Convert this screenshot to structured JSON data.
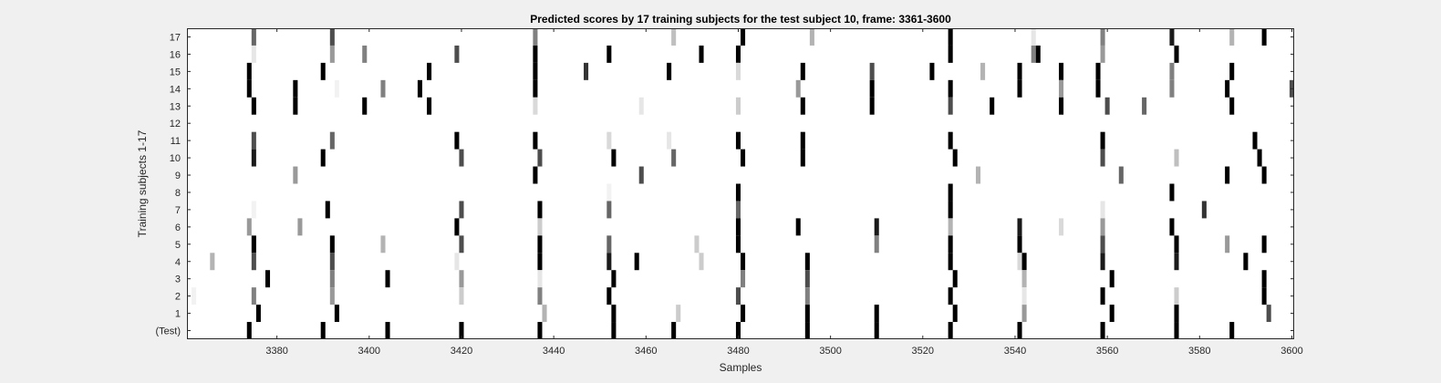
{
  "chart_data": {
    "type": "heatmap",
    "title": "Predicted scores by 17 training subjects for the test subject 10, frame: 3361-3600",
    "xlabel": "Samples",
    "ylabel": "Training subjects 1-17",
    "xlim": [
      3361,
      3600
    ],
    "x_ticks": [
      3380,
      3400,
      3420,
      3440,
      3460,
      3480,
      3500,
      3520,
      3540,
      3560,
      3580,
      3600
    ],
    "y_rows": [
      "17",
      "16",
      "15",
      "14",
      "13",
      "12",
      "11",
      "10",
      "9",
      "8",
      "7",
      "6",
      "5",
      "4",
      "3",
      "2",
      "1",
      "(Test)"
    ],
    "colormap": "gray (0 = black, 1 = white)",
    "cells": {
      "17": [
        [
          3375,
          0.4
        ],
        [
          3392,
          0.3
        ],
        [
          3436,
          0.5
        ],
        [
          3466,
          0.75
        ],
        [
          3481,
          0.0
        ],
        [
          3496,
          0.7
        ],
        [
          3526,
          0.0
        ],
        [
          3544,
          0.9
        ],
        [
          3559,
          0.5
        ],
        [
          3574,
          0.1
        ],
        [
          3587,
          0.7
        ],
        [
          3594,
          0.0
        ]
      ],
      "16": [
        [
          3375,
          0.9
        ],
        [
          3392,
          0.6
        ],
        [
          3399,
          0.5
        ],
        [
          3419,
          0.3
        ],
        [
          3436,
          0.0
        ],
        [
          3452,
          0.0
        ],
        [
          3472,
          0.0
        ],
        [
          3480,
          0.0
        ],
        [
          3526,
          0.0
        ],
        [
          3544,
          0.5
        ],
        [
          3545,
          0.0
        ],
        [
          3559,
          0.6
        ],
        [
          3575,
          0.0
        ]
      ],
      "15": [
        [
          3374,
          0.0
        ],
        [
          3390,
          0.0
        ],
        [
          3413,
          0.0
        ],
        [
          3436,
          0.0
        ],
        [
          3447,
          0.2
        ],
        [
          3465,
          0.0
        ],
        [
          3480,
          0.85
        ],
        [
          3494,
          0.0
        ],
        [
          3509,
          0.3
        ],
        [
          3522,
          0.0
        ],
        [
          3533,
          0.7
        ],
        [
          3541,
          0.0
        ],
        [
          3550,
          0.0
        ],
        [
          3558,
          0.0
        ],
        [
          3574,
          0.5
        ],
        [
          3587,
          0.0
        ]
      ],
      "14": [
        [
          3374,
          0.0
        ],
        [
          3384,
          0.0
        ],
        [
          3393,
          0.95
        ],
        [
          3403,
          0.5
        ],
        [
          3411,
          0.0
        ],
        [
          3436,
          0.0
        ],
        [
          3493,
          0.6
        ],
        [
          3509,
          0.0
        ],
        [
          3526,
          0.0
        ],
        [
          3541,
          0.0
        ],
        [
          3550,
          0.6
        ],
        [
          3558,
          0.0
        ],
        [
          3574,
          0.5
        ],
        [
          3586,
          0.0
        ],
        [
          3600,
          0.3
        ]
      ],
      "13": [
        [
          3375,
          0.0
        ],
        [
          3384,
          0.0
        ],
        [
          3399,
          0.0
        ],
        [
          3413,
          0.0
        ],
        [
          3436,
          0.85
        ],
        [
          3459,
          0.9
        ],
        [
          3480,
          0.8
        ],
        [
          3494,
          0.0
        ],
        [
          3509,
          0.0
        ],
        [
          3526,
          0.3
        ],
        [
          3535,
          0.0
        ],
        [
          3550,
          0.0
        ],
        [
          3560,
          0.3
        ],
        [
          3568,
          0.4
        ],
        [
          3587,
          0.0
        ]
      ],
      "12": [],
      "11": [
        [
          3375,
          0.3
        ],
        [
          3392,
          0.4
        ],
        [
          3419,
          0.0
        ],
        [
          3436,
          0.0
        ],
        [
          3452,
          0.85
        ],
        [
          3465,
          0.9
        ],
        [
          3480,
          0.0
        ],
        [
          3494,
          0.0
        ],
        [
          3526,
          0.0
        ],
        [
          3559,
          0.0
        ],
        [
          3592,
          0.0
        ]
      ],
      "10": [
        [
          3375,
          0.1
        ],
        [
          3390,
          0.0
        ],
        [
          3420,
          0.3
        ],
        [
          3437,
          0.3
        ],
        [
          3453,
          0.0
        ],
        [
          3466,
          0.4
        ],
        [
          3481,
          0.0
        ],
        [
          3494,
          0.0
        ],
        [
          3527,
          0.0
        ],
        [
          3559,
          0.3
        ],
        [
          3575,
          0.75
        ],
        [
          3593,
          0.0
        ]
      ],
      "9": [
        [
          3384,
          0.6
        ],
        [
          3436,
          0.0
        ],
        [
          3459,
          0.3
        ],
        [
          3532,
          0.7
        ],
        [
          3563,
          0.4
        ],
        [
          3586,
          0.0
        ],
        [
          3594,
          0.0
        ]
      ],
      "8": [
        [
          3452,
          0.95
        ],
        [
          3480,
          0.0
        ],
        [
          3526,
          0.0
        ],
        [
          3574,
          0.0
        ]
      ],
      "7": [
        [
          3375,
          0.95
        ],
        [
          3391,
          0.0
        ],
        [
          3420,
          0.3
        ],
        [
          3437,
          0.0
        ],
        [
          3452,
          0.4
        ],
        [
          3480,
          0.4
        ],
        [
          3526,
          0.0
        ],
        [
          3559,
          0.9
        ],
        [
          3581,
          0.2
        ]
      ],
      "6": [
        [
          3374,
          0.6
        ],
        [
          3385,
          0.6
        ],
        [
          3419,
          0.0
        ],
        [
          3437,
          0.8
        ],
        [
          3480,
          0.0
        ],
        [
          3493,
          0.0
        ],
        [
          3510,
          0.1
        ],
        [
          3526,
          0.7
        ],
        [
          3541,
          0.1
        ],
        [
          3550,
          0.85
        ],
        [
          3559,
          0.6
        ],
        [
          3574,
          0.0
        ]
      ],
      "5": [
        [
          3375,
          0.0
        ],
        [
          3392,
          0.0
        ],
        [
          3403,
          0.7
        ],
        [
          3420,
          0.3
        ],
        [
          3437,
          0.0
        ],
        [
          3452,
          0.4
        ],
        [
          3471,
          0.8
        ],
        [
          3480,
          0.0
        ],
        [
          3510,
          0.5
        ],
        [
          3526,
          0.0
        ],
        [
          3541,
          0.0
        ],
        [
          3559,
          0.3
        ],
        [
          3575,
          0.0
        ],
        [
          3586,
          0.6
        ],
        [
          3594,
          0.0
        ]
      ],
      "4": [
        [
          3366,
          0.7
        ],
        [
          3375,
          0.3
        ],
        [
          3392,
          0.3
        ],
        [
          3419,
          0.9
        ],
        [
          3437,
          0.0
        ],
        [
          3452,
          0.1
        ],
        [
          3458,
          0.0
        ],
        [
          3472,
          0.8
        ],
        [
          3481,
          0.0
        ],
        [
          3495,
          0.0
        ],
        [
          3526,
          0.0
        ],
        [
          3541,
          0.85
        ],
        [
          3542,
          0.0
        ],
        [
          3559,
          0.1
        ],
        [
          3575,
          0.1
        ],
        [
          3590,
          0.0
        ]
      ],
      "3": [
        [
          3378,
          0.0
        ],
        [
          3392,
          0.5
        ],
        [
          3404,
          0.0
        ],
        [
          3420,
          0.6
        ],
        [
          3437,
          0.9
        ],
        [
          3453,
          0.0
        ],
        [
          3481,
          0.5
        ],
        [
          3495,
          0.3
        ],
        [
          3527,
          0.0
        ],
        [
          3542,
          0.7
        ],
        [
          3561,
          0.0
        ],
        [
          3594,
          0.0
        ]
      ],
      "2": [
        [
          3362,
          0.95
        ],
        [
          3375,
          0.5
        ],
        [
          3392,
          0.6
        ],
        [
          3420,
          0.8
        ],
        [
          3437,
          0.5
        ],
        [
          3452,
          0.0
        ],
        [
          3480,
          0.3
        ],
        [
          3495,
          0.5
        ],
        [
          3526,
          0.0
        ],
        [
          3542,
          0.9
        ],
        [
          3559,
          0.0
        ],
        [
          3575,
          0.8
        ],
        [
          3594,
          0.0
        ]
      ],
      "1": [
        [
          3376,
          0.0
        ],
        [
          3393,
          0.0
        ],
        [
          3438,
          0.7
        ],
        [
          3453,
          0.0
        ],
        [
          3467,
          0.8
        ],
        [
          3481,
          0.0
        ],
        [
          3495,
          0.0
        ],
        [
          3510,
          0.0
        ],
        [
          3527,
          0.0
        ],
        [
          3542,
          0.6
        ],
        [
          3561,
          0.0
        ],
        [
          3575,
          0.0
        ],
        [
          3595,
          0.3
        ]
      ],
      "(Test)": [
        [
          3374,
          0.0
        ],
        [
          3390,
          0.0
        ],
        [
          3404,
          0.0
        ],
        [
          3420,
          0.0
        ],
        [
          3437,
          0.0
        ],
        [
          3453,
          0.0
        ],
        [
          3466,
          0.0
        ],
        [
          3480,
          0.0
        ],
        [
          3495,
          0.0
        ],
        [
          3510,
          0.0
        ],
        [
          3526,
          0.0
        ],
        [
          3541,
          0.0
        ],
        [
          3559,
          0.0
        ],
        [
          3575,
          0.0
        ],
        [
          3587,
          0.0
        ]
      ]
    }
  }
}
